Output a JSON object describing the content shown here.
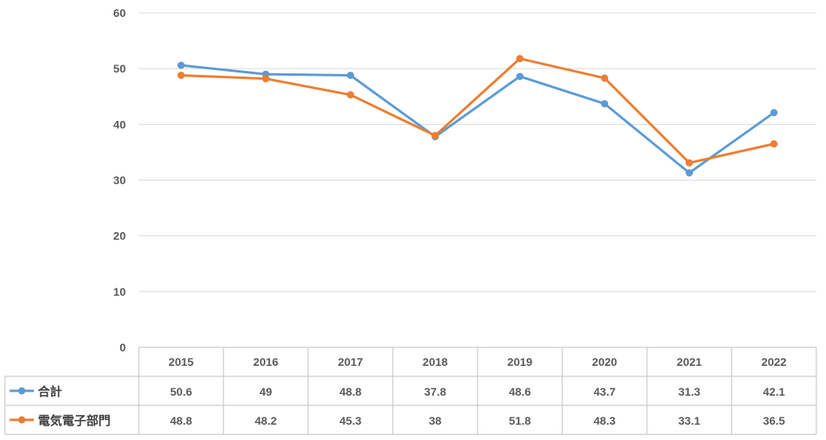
{
  "chart_data": {
    "type": "line",
    "categories": [
      "2015",
      "2016",
      "2017",
      "2018",
      "2019",
      "2020",
      "2021",
      "2022"
    ],
    "series": [
      {
        "name": "合計",
        "values": [
          50.6,
          49,
          48.8,
          37.8,
          48.6,
          43.7,
          31.3,
          42.1
        ],
        "color": "#5b9bd5",
        "display": [
          "50.6",
          "49",
          "48.8",
          "37.8",
          "48.6",
          "43.7",
          "31.3",
          "42.1"
        ]
      },
      {
        "name": "電気電子部門",
        "values": [
          48.8,
          48.2,
          45.3,
          38,
          51.8,
          48.3,
          33.1,
          36.5
        ],
        "color": "#ed7d31",
        "display": [
          "48.8",
          "48.2",
          "45.3",
          "38",
          "51.8",
          "48.3",
          "33.1",
          "36.5"
        ]
      }
    ],
    "yticks": [
      "0",
      "10",
      "20",
      "30",
      "40",
      "50",
      "60"
    ],
    "ylim": [
      0,
      60
    ],
    "grid": true,
    "legend": "data-table"
  }
}
